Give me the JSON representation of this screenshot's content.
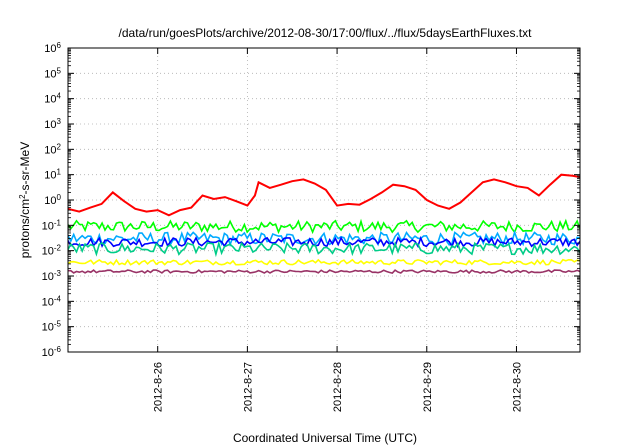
{
  "chart_data": {
    "type": "line",
    "title": "/data/run/goesPlots/archive/2012-08-30/17:00/flux/../flux/5daysEarthFluxes.txt",
    "xlabel": "Coordinated Universal Time (UTC)",
    "ylabel_parts": {
      "pre": "protons/cm",
      "sup": "2",
      "post": "-s-sr-MeV"
    },
    "y_scale": "log",
    "ylim": [
      1e-06,
      1000000.0
    ],
    "y_tick_exponents": [
      -6,
      -5,
      -4,
      -3,
      -2,
      -1,
      0,
      1,
      2,
      3,
      4,
      5,
      6
    ],
    "y_tick_base": "10",
    "xlim": [
      "2012-08-25T00:00",
      "2012-08-30T17:00"
    ],
    "x_ticks": [
      {
        "date": "2012-08-26T00:00",
        "label": "2012-8-26"
      },
      {
        "date": "2012-08-27T00:00",
        "label": "2012-8-27"
      },
      {
        "date": "2012-08-28T00:00",
        "label": "2012-8-28"
      },
      {
        "date": "2012-08-29T00:00",
        "label": "2012-8-29"
      },
      {
        "date": "2012-08-30T00:00",
        "label": "2012-8-30"
      }
    ],
    "grid": true,
    "series": [
      {
        "color": "#ff0000",
        "points": [
          [
            "2012-08-25T00:00",
            0.45
          ],
          [
            "2012-08-25T03:00",
            0.35
          ],
          [
            "2012-08-25T06:00",
            0.5
          ],
          [
            "2012-08-25T09:00",
            0.7
          ],
          [
            "2012-08-25T12:00",
            2.0
          ],
          [
            "2012-08-25T15:00",
            0.9
          ],
          [
            "2012-08-25T18:00",
            0.45
          ],
          [
            "2012-08-25T21:00",
            0.35
          ],
          [
            "2012-08-26T00:00",
            0.4
          ],
          [
            "2012-08-26T03:00",
            0.25
          ],
          [
            "2012-08-26T06:00",
            0.4
          ],
          [
            "2012-08-26T09:00",
            0.5
          ],
          [
            "2012-08-26T12:00",
            1.5
          ],
          [
            "2012-08-26T15:00",
            1.1
          ],
          [
            "2012-08-26T18:00",
            1.3
          ],
          [
            "2012-08-26T21:00",
            0.9
          ],
          [
            "2012-08-27T00:00",
            0.6
          ],
          [
            "2012-08-27T02:00",
            1.5
          ],
          [
            "2012-08-27T03:00",
            5.0
          ],
          [
            "2012-08-27T06:00",
            3.0
          ],
          [
            "2012-08-27T09:00",
            4.0
          ],
          [
            "2012-08-27T12:00",
            5.5
          ],
          [
            "2012-08-27T15:00",
            6.5
          ],
          [
            "2012-08-27T18:00",
            4.5
          ],
          [
            "2012-08-27T21:00",
            2.5
          ],
          [
            "2012-08-28T00:00",
            0.6
          ],
          [
            "2012-08-28T03:00",
            0.7
          ],
          [
            "2012-08-28T06:00",
            0.65
          ],
          [
            "2012-08-28T09:00",
            1.1
          ],
          [
            "2012-08-28T12:00",
            2.0
          ],
          [
            "2012-08-28T15:00",
            4.0
          ],
          [
            "2012-08-28T18:00",
            3.5
          ],
          [
            "2012-08-28T21:00",
            2.5
          ],
          [
            "2012-08-29T00:00",
            1.0
          ],
          [
            "2012-08-29T03:00",
            0.6
          ],
          [
            "2012-08-29T06:00",
            0.45
          ],
          [
            "2012-08-29T09:00",
            0.8
          ],
          [
            "2012-08-29T12:00",
            2.0
          ],
          [
            "2012-08-29T15:00",
            5.0
          ],
          [
            "2012-08-29T18:00",
            6.5
          ],
          [
            "2012-08-29T21:00",
            5.0
          ],
          [
            "2012-08-30T00:00",
            3.5
          ],
          [
            "2012-08-30T03:00",
            3.0
          ],
          [
            "2012-08-30T06:00",
            1.5
          ],
          [
            "2012-08-30T09:00",
            4.0
          ],
          [
            "2012-08-30T12:00",
            10.0
          ],
          [
            "2012-08-30T15:00",
            9.0
          ],
          [
            "2012-08-30T17:00",
            8.0
          ]
        ]
      },
      {
        "color": "#00ff00",
        "base": 0.09,
        "spread": 0.45
      },
      {
        "color": "#00aaff",
        "base": 0.03,
        "spread": 0.5
      },
      {
        "color": "#0000ff",
        "base": 0.022,
        "spread": 0.35
      },
      {
        "color": "#00cc88",
        "base": 0.012,
        "spread": 0.45
      },
      {
        "color": "#ffff00",
        "base": 0.0035,
        "spread": 0.2
      },
      {
        "color": "#993366",
        "base": 0.0015,
        "spread": 0.12
      }
    ]
  }
}
